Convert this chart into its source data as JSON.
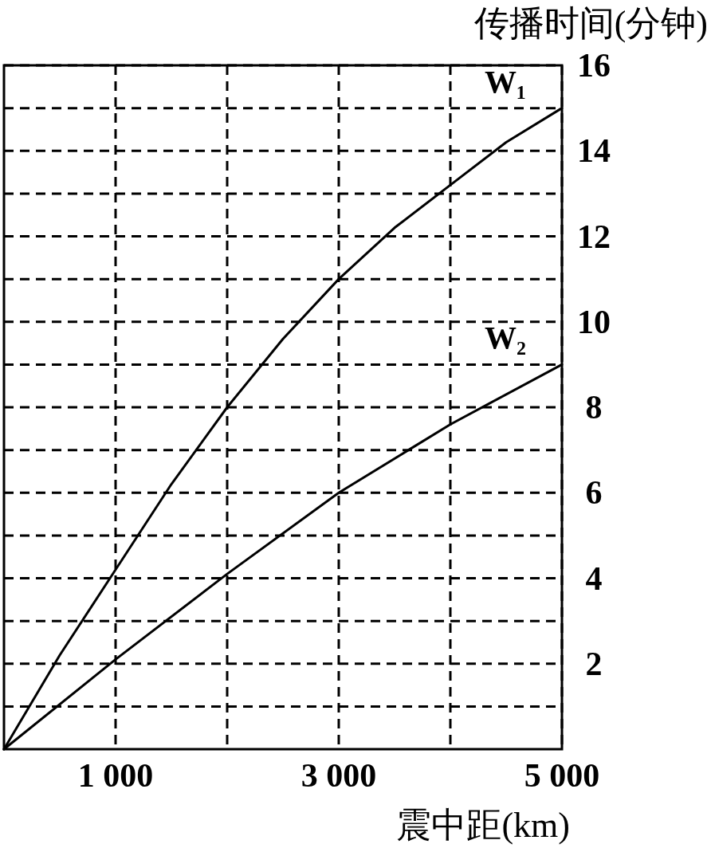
{
  "chart_data": {
    "type": "line",
    "ylabel": "传播时间(分钟)",
    "xlabel": "震中距(km)",
    "xlim": [
      0,
      5000
    ],
    "ylim": [
      0,
      16
    ],
    "xticks": [
      {
        "value": 1000,
        "label": "1 000"
      },
      {
        "value": 2000,
        "label": null
      },
      {
        "value": 3000,
        "label": "3 000"
      },
      {
        "value": 4000,
        "label": null
      },
      {
        "value": 5000,
        "label": "5 000"
      }
    ],
    "yticks": [
      {
        "value": 1,
        "label": null
      },
      2,
      {
        "value": 3,
        "label": null
      },
      4,
      {
        "value": 5,
        "label": null
      },
      6,
      {
        "value": 7,
        "label": null
      },
      8,
      {
        "value": 9,
        "label": null
      },
      10,
      {
        "value": 11,
        "label": null
      },
      12,
      {
        "value": 13,
        "label": null
      },
      14,
      {
        "value": 15,
        "label": null
      },
      16
    ],
    "grid": true,
    "legend": false,
    "marker": "none",
    "line_style": "solid",
    "series": [
      {
        "name": "W₁",
        "color": "#000000",
        "x": [
          0,
          500,
          1000,
          1500,
          2000,
          2500,
          3000,
          3500,
          4000,
          4500,
          5000
        ],
        "values": [
          0,
          2.2,
          4.2,
          6.2,
          8.0,
          9.6,
          11.0,
          12.2,
          13.2,
          14.2,
          15.0
        ]
      },
      {
        "name": "W₂",
        "color": "#000000",
        "x": [
          0,
          1000,
          2000,
          3000,
          4000,
          5000
        ],
        "values": [
          0,
          2.1,
          4.1,
          6.0,
          7.6,
          9.0
        ]
      }
    ]
  }
}
